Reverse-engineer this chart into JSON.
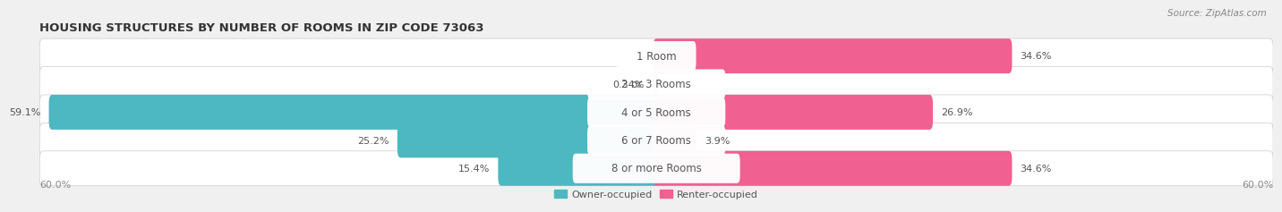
{
  "title": "HOUSING STRUCTURES BY NUMBER OF ROOMS IN ZIP CODE 73063",
  "source": "Source: ZipAtlas.com",
  "categories": [
    "1 Room",
    "2 or 3 Rooms",
    "4 or 5 Rooms",
    "6 or 7 Rooms",
    "8 or more Rooms"
  ],
  "owner_values": [
    0.0,
    0.34,
    59.1,
    25.2,
    15.4
  ],
  "renter_values": [
    34.6,
    0.0,
    26.9,
    3.9,
    34.6
  ],
  "owner_color_strong": "#4db8c0",
  "owner_color_light": "#85d0d8",
  "renter_color_strong": "#f06090",
  "renter_color_light": "#f4a0c0",
  "axis_max": 60.0,
  "bar_height": 0.62,
  "background_color": "#f0f0f0",
  "bar_bg_color": "#e2e2e2",
  "label_fontsize": 8.0,
  "cat_fontsize": 8.5,
  "title_fontsize": 9.5,
  "source_fontsize": 7.5,
  "text_color": "#555555",
  "title_color": "#333333"
}
